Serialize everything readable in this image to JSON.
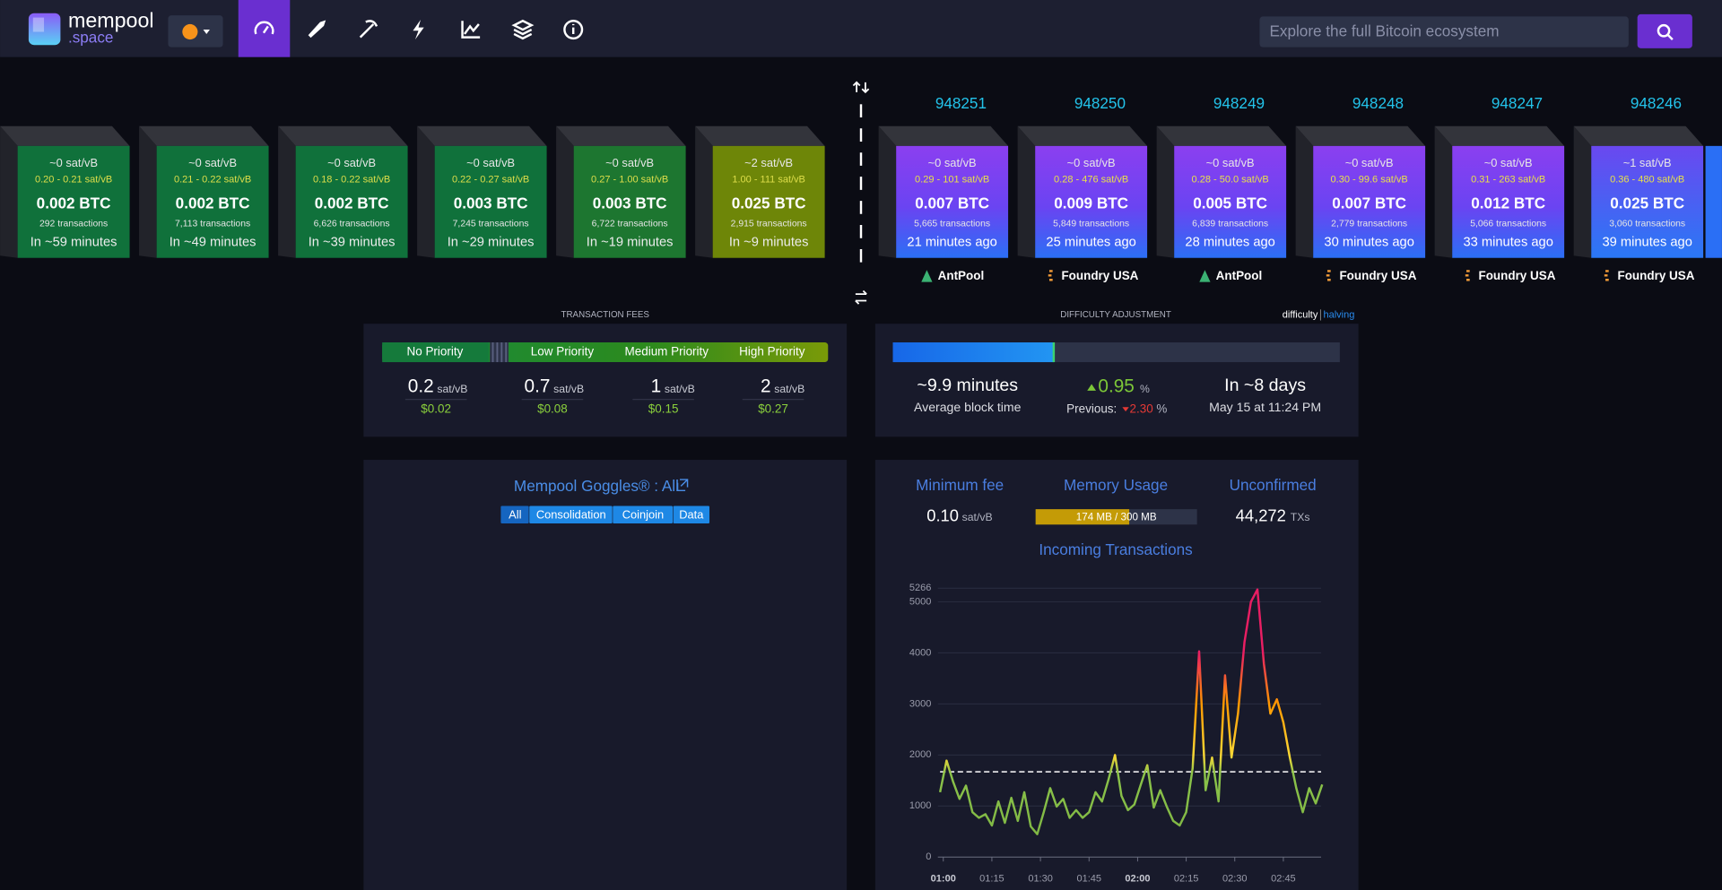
{
  "header": {
    "logo": [
      "mempool",
      ".space"
    ],
    "search_placeholder": "Explore the full Bitcoin ecosystem"
  },
  "mempool_blocks": [
    {
      "fee": "~0 sat/vB",
      "range": "0.20 - 0.21 sat/vB",
      "total": "0.002 BTC",
      "transactions": "292 transactions",
      "eta": "In ~59 minutes",
      "color": "#10713b"
    },
    {
      "fee": "~0 sat/vB",
      "range": "0.21 - 0.22 sat/vB",
      "total": "0.002 BTC",
      "transactions": "7,113 transactions",
      "eta": "In ~49 minutes",
      "color": "#10713b"
    },
    {
      "fee": "~0 sat/vB",
      "range": "0.18 - 0.22 sat/vB",
      "total": "0.002 BTC",
      "transactions": "6,626 transactions",
      "eta": "In ~39 minutes",
      "color": "#10713b"
    },
    {
      "fee": "~0 sat/vB",
      "range": "0.22 - 0.27 sat/vB",
      "total": "0.003 BTC",
      "transactions": "7,245 transactions",
      "eta": "In ~29 minutes",
      "color": "#10713b"
    },
    {
      "fee": "~0 sat/vB",
      "range": "0.27 - 1.00 sat/vB",
      "total": "0.003 BTC",
      "transactions": "6,722 transactions",
      "eta": "In ~19 minutes",
      "color": "#1d7630"
    },
    {
      "fee": "~2 sat/vB",
      "range": "1.00 - 111 sat/vB",
      "total": "0.025 BTC",
      "transactions": "2,915 transactions",
      "eta": "In ~9 minutes",
      "color": "#6e8608"
    }
  ],
  "blocks": [
    {
      "height": "948251",
      "fee": "~0 sat/vB",
      "range": "0.29 - 101 sat/vB",
      "total": "0.007 BTC",
      "transactions": "5,665 transactions",
      "time": "21 minutes ago",
      "pool": "AntPool"
    },
    {
      "height": "948250",
      "fee": "~0 sat/vB",
      "range": "0.28 - 476 sat/vB",
      "total": "0.009 BTC",
      "transactions": "5,849 transactions",
      "time": "25 minutes ago",
      "pool": "Foundry USA"
    },
    {
      "height": "948249",
      "fee": "~0 sat/vB",
      "range": "0.28 - 50.0 sat/vB",
      "total": "0.005 BTC",
      "transactions": "6,839 transactions",
      "time": "28 minutes ago",
      "pool": "AntPool"
    },
    {
      "height": "948248",
      "fee": "~0 sat/vB",
      "range": "0.30 - 99.6 sat/vB",
      "total": "0.007 BTC",
      "transactions": "2,779 transactions",
      "time": "30 minutes ago",
      "pool": "Foundry USA"
    },
    {
      "height": "948247",
      "fee": "~0 sat/vB",
      "range": "0.31 - 263 sat/vB",
      "total": "0.012 BTC",
      "transactions": "5,066 transactions",
      "time": "33 minutes ago",
      "pool": "Foundry USA"
    },
    {
      "height": "948246",
      "fee": "~1 sat/vB",
      "range": "0.36 - 480 sat/vB",
      "total": "0.025 BTC",
      "transactions": "3,060 transactions",
      "time": "39 minutes ago",
      "pool": "Foundry USA"
    }
  ],
  "fees": {
    "title": "TRANSACTION FEES",
    "priorities": [
      {
        "label": "No Priority",
        "value": "0.2",
        "unit": "sat/vB",
        "usd": "$0.02"
      },
      {
        "label": "Low Priority",
        "value": "0.7",
        "unit": "sat/vB",
        "usd": "$0.08"
      },
      {
        "label": "Medium Priority",
        "value": "1",
        "unit": "sat/vB",
        "usd": "$0.15"
      },
      {
        "label": "High Priority",
        "value": "2",
        "unit": "sat/vB",
        "usd": "$0.27"
      }
    ]
  },
  "difficulty": {
    "title": "DIFFICULTY ADJUSTMENT",
    "tabs": [
      "difficulty",
      "halving"
    ],
    "progress": 36,
    "avg_block_time": "~9.9 minutes",
    "avg_block_time_label": "Average block time",
    "change": "0.95",
    "change_unit": "%",
    "previous_label": "Previous:",
    "previous": "2.30",
    "previous_unit": "%",
    "remaining": "In ~8 days",
    "eta": "May 15 at 11:24 PM"
  },
  "goggles": {
    "title": "Mempool Goggles® : All",
    "filters": [
      "All",
      "Consolidation",
      "Coinjoin",
      "Data"
    ],
    "active": "All"
  },
  "stats": {
    "min_fee_label": "Minimum fee",
    "min_fee": "0.10",
    "min_fee_unit": "sat/vB",
    "memory_label": "Memory Usage",
    "memory": {
      "label": "174 MB / 300 MB",
      "used": 174,
      "total": 300
    },
    "unconfirmed_label": "Unconfirmed",
    "unconfirmed": "44,272",
    "unconfirmed_unit": "TXs"
  },
  "chart_data": {
    "type": "line",
    "title": "Incoming Transactions",
    "x": [
      "00:59",
      "01:01",
      "01:03",
      "01:05",
      "01:07",
      "01:09",
      "01:11",
      "01:13",
      "01:15",
      "01:17",
      "01:19",
      "01:21",
      "01:23",
      "01:25",
      "01:27",
      "01:29",
      "01:31",
      "01:33",
      "01:35",
      "01:37",
      "01:39",
      "01:41",
      "01:43",
      "01:45",
      "01:47",
      "01:49",
      "01:51",
      "01:53",
      "01:55",
      "01:57",
      "01:59",
      "02:01",
      "02:03",
      "02:05",
      "02:07",
      "02:09",
      "02:11",
      "02:13",
      "02:15",
      "02:17",
      "02:19",
      "02:21",
      "02:23",
      "02:25",
      "02:27",
      "02:29",
      "02:31",
      "02:33",
      "02:35",
      "02:37",
      "02:39",
      "02:41",
      "02:43",
      "02:45",
      "02:47",
      "02:49",
      "02:51",
      "02:53",
      "02:55",
      "02:57"
    ],
    "values": [
      1270,
      1890,
      1480,
      1140,
      1400,
      880,
      770,
      840,
      620,
      1090,
      670,
      1160,
      710,
      1270,
      600,
      450,
      880,
      1350,
      990,
      1140,
      770,
      920,
      770,
      880,
      1270,
      1090,
      1520,
      2000,
      1200,
      920,
      1030,
      1420,
      1800,
      970,
      1310,
      990,
      710,
      620,
      880,
      1740,
      4030,
      1310,
      1950,
      1090,
      3560,
      1950,
      2810,
      4210,
      5000,
      5240,
      3780,
      2810,
      3090,
      2640,
      1950,
      1350,
      880,
      1350,
      1050,
      1420
    ],
    "xlim": [
      "00:59",
      "02:57"
    ],
    "xticks": [
      "01:00",
      "01:15",
      "01:30",
      "01:45",
      "02:00",
      "02:15",
      "02:30",
      "02:45"
    ],
    "ylim": [
      0,
      5266
    ],
    "yticks": [
      0,
      1000,
      2000,
      3000,
      4000,
      5000,
      5266
    ],
    "reference_line": 1670,
    "grid": true
  }
}
